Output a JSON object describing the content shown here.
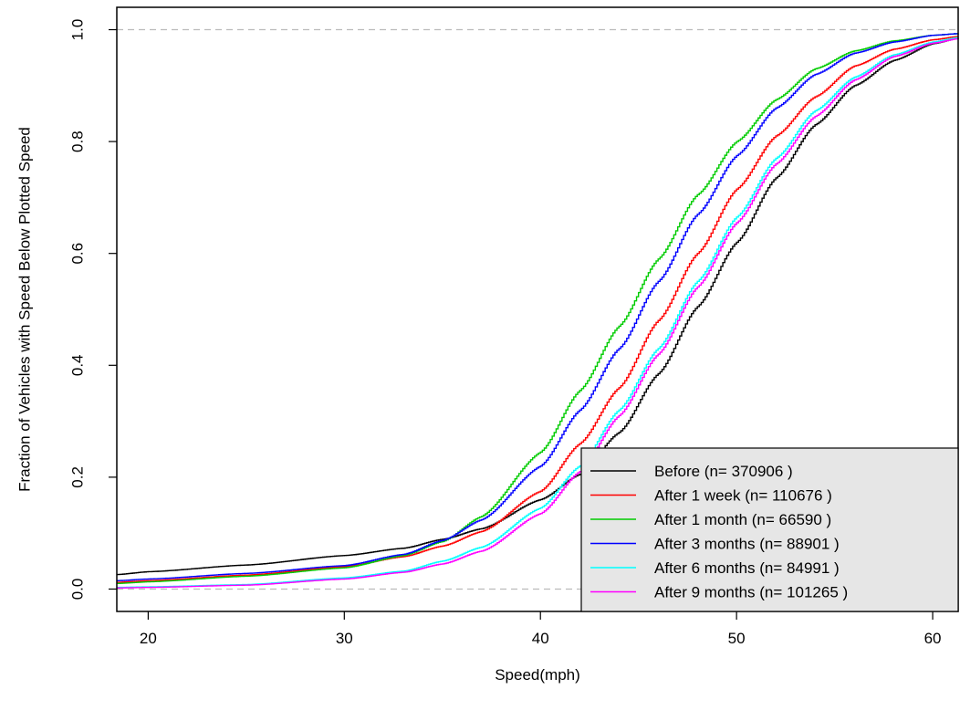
{
  "chart_data": {
    "type": "line",
    "title": "",
    "xlabel": "Speed(mph)",
    "ylabel": "Fraction of Vehicles with Speed Below Plotted Speed",
    "xlim": [
      18.4,
      61.3
    ],
    "ylim": [
      -0.04,
      1.04
    ],
    "xticks": [
      20,
      30,
      40,
      50,
      60
    ],
    "yticks": [
      0.0,
      0.2,
      0.4,
      0.6,
      0.8,
      1.0
    ],
    "ytick_labels": [
      "0.0",
      "0.2",
      "0.4",
      "0.6",
      "0.8",
      "1.0"
    ],
    "reference_lines": [
      0.0,
      1.0
    ],
    "legend_position": "bottom-right",
    "step": true,
    "series": [
      {
        "name": "Before (n= 370906 )",
        "legend_label": "Before  (n= 370906 )",
        "color": "#000000",
        "points": [
          [
            18.4,
            0.026
          ],
          [
            20,
            0.031
          ],
          [
            25,
            0.043
          ],
          [
            30,
            0.06
          ],
          [
            33,
            0.073
          ],
          [
            35,
            0.089
          ],
          [
            37,
            0.108
          ],
          [
            40,
            0.16
          ],
          [
            42,
            0.205
          ],
          [
            44,
            0.28
          ],
          [
            46,
            0.385
          ],
          [
            48,
            0.505
          ],
          [
            50,
            0.62
          ],
          [
            52,
            0.735
          ],
          [
            54,
            0.83
          ],
          [
            56,
            0.9
          ],
          [
            58,
            0.945
          ],
          [
            60,
            0.975
          ],
          [
            61.3,
            0.985
          ]
        ]
      },
      {
        "name": "After 1 week (n= 110676 )",
        "legend_label": "After 1 week  (n= 110676 )",
        "color": "#ff0000",
        "points": [
          [
            18.4,
            0.012
          ],
          [
            20,
            0.015
          ],
          [
            25,
            0.025
          ],
          [
            30,
            0.04
          ],
          [
            33,
            0.058
          ],
          [
            35,
            0.077
          ],
          [
            37,
            0.103
          ],
          [
            40,
            0.175
          ],
          [
            42,
            0.26
          ],
          [
            44,
            0.36
          ],
          [
            46,
            0.48
          ],
          [
            48,
            0.6
          ],
          [
            50,
            0.715
          ],
          [
            52,
            0.81
          ],
          [
            54,
            0.88
          ],
          [
            56,
            0.935
          ],
          [
            58,
            0.965
          ],
          [
            60,
            0.982
          ],
          [
            61.3,
            0.988
          ]
        ]
      },
      {
        "name": "After 1 month (n= 66590 )",
        "legend_label": "After 1 month  (n= 66590 )",
        "color": "#00cc00",
        "points": [
          [
            18.4,
            0.01
          ],
          [
            20,
            0.013
          ],
          [
            25,
            0.023
          ],
          [
            30,
            0.038
          ],
          [
            33,
            0.06
          ],
          [
            35,
            0.085
          ],
          [
            37,
            0.13
          ],
          [
            40,
            0.245
          ],
          [
            42,
            0.355
          ],
          [
            44,
            0.47
          ],
          [
            46,
            0.59
          ],
          [
            48,
            0.705
          ],
          [
            50,
            0.8
          ],
          [
            52,
            0.875
          ],
          [
            54,
            0.93
          ],
          [
            56,
            0.962
          ],
          [
            58,
            0.98
          ],
          [
            60,
            0.99
          ],
          [
            61.3,
            0.993
          ]
        ]
      },
      {
        "name": "After 3 months (n= 88901 )",
        "legend_label": "After 3 months  (n= 88901 )",
        "color": "#0000ff",
        "points": [
          [
            18.4,
            0.015
          ],
          [
            20,
            0.018
          ],
          [
            25,
            0.028
          ],
          [
            30,
            0.042
          ],
          [
            33,
            0.062
          ],
          [
            35,
            0.087
          ],
          [
            37,
            0.124
          ],
          [
            40,
            0.22
          ],
          [
            42,
            0.32
          ],
          [
            44,
            0.43
          ],
          [
            46,
            0.55
          ],
          [
            48,
            0.67
          ],
          [
            50,
            0.775
          ],
          [
            52,
            0.86
          ],
          [
            54,
            0.92
          ],
          [
            56,
            0.958
          ],
          [
            58,
            0.978
          ],
          [
            60,
            0.99
          ],
          [
            61.3,
            0.993
          ]
        ]
      },
      {
        "name": "After 6 months (n= 84991 )",
        "legend_label": "After 6 months  (n= 84991 )",
        "color": "#00ffff",
        "points": [
          [
            18.4,
            0.003
          ],
          [
            20,
            0.004
          ],
          [
            25,
            0.008
          ],
          [
            30,
            0.02
          ],
          [
            33,
            0.032
          ],
          [
            35,
            0.05
          ],
          [
            37,
            0.075
          ],
          [
            40,
            0.145
          ],
          [
            42,
            0.22
          ],
          [
            44,
            0.32
          ],
          [
            46,
            0.43
          ],
          [
            48,
            0.55
          ],
          [
            50,
            0.665
          ],
          [
            52,
            0.77
          ],
          [
            54,
            0.855
          ],
          [
            56,
            0.915
          ],
          [
            58,
            0.955
          ],
          [
            60,
            0.978
          ],
          [
            61.3,
            0.986
          ]
        ]
      },
      {
        "name": "After 9 months (n= 101265 )",
        "legend_label": "After 9 months  (n= 101265 )",
        "color": "#ff00ff",
        "points": [
          [
            18.4,
            0.002
          ],
          [
            20,
            0.003
          ],
          [
            25,
            0.007
          ],
          [
            30,
            0.018
          ],
          [
            33,
            0.03
          ],
          [
            35,
            0.045
          ],
          [
            37,
            0.068
          ],
          [
            40,
            0.135
          ],
          [
            42,
            0.21
          ],
          [
            44,
            0.31
          ],
          [
            46,
            0.42
          ],
          [
            48,
            0.54
          ],
          [
            50,
            0.655
          ],
          [
            52,
            0.76
          ],
          [
            54,
            0.845
          ],
          [
            56,
            0.91
          ],
          [
            58,
            0.952
          ],
          [
            60,
            0.976
          ],
          [
            61.3,
            0.984
          ]
        ]
      }
    ]
  }
}
